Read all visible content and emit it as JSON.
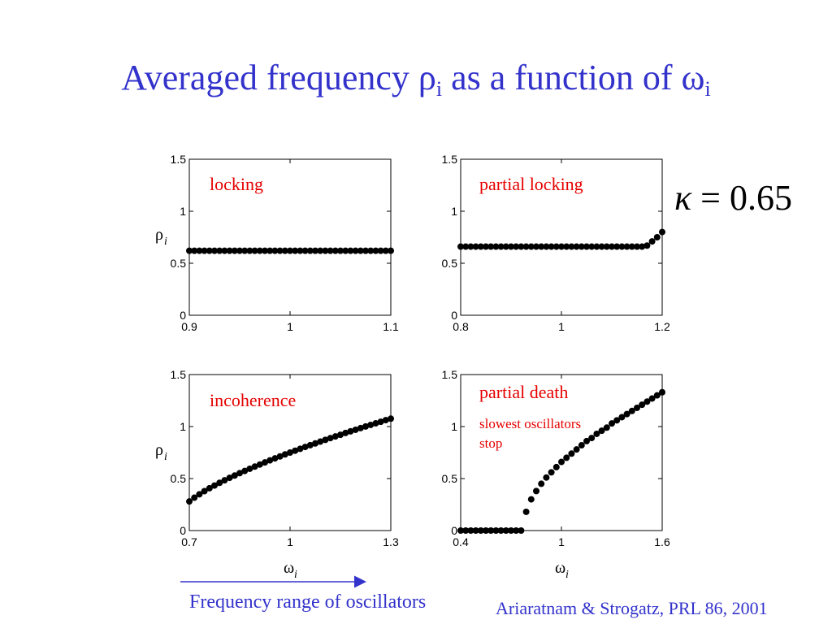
{
  "title": {
    "main": "Averaged frequency ρ",
    "sub1": "i",
    "middle": " as a function of ω",
    "sub2": "i"
  },
  "kappa": {
    "symbol": "κ",
    "equals": " = ",
    "value": "0.65"
  },
  "annotations": {
    "range_label": "Frequency range of oscillators",
    "citation": "Ariaratnam & Strogatz, PRL 86, 2001",
    "slowest_line1": "slowest oscillators",
    "slowest_line2": "stop"
  },
  "axis_symbols": {
    "rho": "ρ",
    "omega": "ω",
    "sub": "i"
  },
  "colors": {
    "title": "#3333cc",
    "label": "#e60000",
    "marker": "#000000",
    "arrow_red": "#e60000",
    "arrow_blue": "#3333cc"
  },
  "chart_data": [
    {
      "type": "scatter",
      "label": "locking",
      "xlim": [
        0.9,
        1.1
      ],
      "ylim": [
        0,
        1.5
      ],
      "xticks": [
        "0.9",
        "1",
        "1.1"
      ],
      "yticks": [
        "0",
        "0.5",
        "1",
        "1.5"
      ],
      "ylabel": "ρi",
      "xlabel": "",
      "x": [
        0.9,
        0.905,
        0.91,
        0.915,
        0.92,
        0.925,
        0.93,
        0.935,
        0.94,
        0.945,
        0.95,
        0.955,
        0.96,
        0.965,
        0.97,
        0.975,
        0.98,
        0.985,
        0.99,
        0.995,
        1.0,
        1.005,
        1.01,
        1.015,
        1.02,
        1.025,
        1.03,
        1.035,
        1.04,
        1.045,
        1.05,
        1.055,
        1.06,
        1.065,
        1.07,
        1.075,
        1.08,
        1.085,
        1.09,
        1.095,
        1.1
      ],
      "y": [
        0.62,
        0.62,
        0.62,
        0.62,
        0.62,
        0.62,
        0.62,
        0.62,
        0.62,
        0.62,
        0.62,
        0.62,
        0.62,
        0.62,
        0.62,
        0.62,
        0.62,
        0.62,
        0.62,
        0.62,
        0.62,
        0.62,
        0.62,
        0.62,
        0.62,
        0.62,
        0.62,
        0.62,
        0.62,
        0.62,
        0.62,
        0.62,
        0.62,
        0.62,
        0.62,
        0.62,
        0.62,
        0.62,
        0.62,
        0.62,
        0.62
      ]
    },
    {
      "type": "scatter",
      "label": "partial locking",
      "xlim": [
        0.8,
        1.2
      ],
      "ylim": [
        0,
        1.5
      ],
      "xticks": [
        "0.8",
        "1",
        "1.2"
      ],
      "yticks": [
        "0",
        "0.5",
        "1",
        "1.5"
      ],
      "ylabel": "",
      "xlabel": "",
      "x": [
        0.8,
        0.81,
        0.82,
        0.83,
        0.84,
        0.85,
        0.86,
        0.87,
        0.88,
        0.89,
        0.9,
        0.91,
        0.92,
        0.93,
        0.94,
        0.95,
        0.96,
        0.97,
        0.98,
        0.99,
        1.0,
        1.01,
        1.02,
        1.03,
        1.04,
        1.05,
        1.06,
        1.07,
        1.08,
        1.09,
        1.1,
        1.11,
        1.12,
        1.13,
        1.14,
        1.15,
        1.16,
        1.17,
        1.18,
        1.19,
        1.2
      ],
      "y": [
        0.66,
        0.66,
        0.66,
        0.66,
        0.66,
        0.66,
        0.66,
        0.66,
        0.66,
        0.66,
        0.66,
        0.66,
        0.66,
        0.66,
        0.66,
        0.66,
        0.66,
        0.66,
        0.66,
        0.66,
        0.66,
        0.66,
        0.66,
        0.66,
        0.66,
        0.66,
        0.66,
        0.66,
        0.66,
        0.66,
        0.66,
        0.66,
        0.66,
        0.66,
        0.66,
        0.66,
        0.66,
        0.67,
        0.71,
        0.75,
        0.8
      ]
    },
    {
      "type": "scatter",
      "label": "incoherence",
      "xlim": [
        0.7,
        1.3
      ],
      "ylim": [
        0,
        1.5
      ],
      "xticks": [
        "0.7",
        "1",
        "1.3"
      ],
      "yticks": [
        "0",
        "0.5",
        "1",
        "1.5"
      ],
      "ylabel": "ρi",
      "xlabel": "ωi",
      "x": [
        0.7,
        0.715,
        0.73,
        0.745,
        0.76,
        0.775,
        0.79,
        0.805,
        0.82,
        0.835,
        0.85,
        0.865,
        0.88,
        0.895,
        0.91,
        0.925,
        0.94,
        0.955,
        0.97,
        0.985,
        1.0,
        1.015,
        1.03,
        1.045,
        1.06,
        1.075,
        1.09,
        1.105,
        1.12,
        1.135,
        1.15,
        1.165,
        1.18,
        1.195,
        1.21,
        1.225,
        1.24,
        1.255,
        1.27,
        1.285,
        1.3
      ],
      "y": [
        0.28,
        0.316,
        0.349,
        0.379,
        0.407,
        0.433,
        0.459,
        0.483,
        0.507,
        0.529,
        0.552,
        0.573,
        0.594,
        0.615,
        0.635,
        0.655,
        0.675,
        0.694,
        0.713,
        0.732,
        0.75,
        0.768,
        0.786,
        0.804,
        0.821,
        0.838,
        0.855,
        0.872,
        0.889,
        0.905,
        0.921,
        0.938,
        0.954,
        0.969,
        0.985,
        1.001,
        1.016,
        1.031,
        1.046,
        1.062,
        1.076
      ]
    },
    {
      "type": "scatter",
      "label": "partial death",
      "xlim": [
        0.4,
        1.6
      ],
      "ylim": [
        0,
        1.5
      ],
      "xticks": [
        "0.4",
        "1",
        "1.6"
      ],
      "yticks": [
        "0",
        "0.5",
        "1",
        "1.5"
      ],
      "ylabel": "",
      "xlabel": "ωi",
      "x": [
        0.4,
        0.43,
        0.46,
        0.49,
        0.52,
        0.55,
        0.58,
        0.61,
        0.64,
        0.67,
        0.7,
        0.73,
        0.76,
        0.79,
        0.82,
        0.85,
        0.88,
        0.91,
        0.94,
        0.97,
        1.0,
        1.03,
        1.06,
        1.09,
        1.12,
        1.15,
        1.18,
        1.21,
        1.24,
        1.27,
        1.3,
        1.33,
        1.36,
        1.39,
        1.42,
        1.45,
        1.48,
        1.51,
        1.54,
        1.57,
        1.6
      ],
      "y": [
        0,
        0,
        0,
        0,
        0,
        0,
        0,
        0,
        0,
        0,
        0,
        0,
        0,
        0.18,
        0.3,
        0.38,
        0.45,
        0.51,
        0.56,
        0.61,
        0.66,
        0.7,
        0.74,
        0.78,
        0.82,
        0.86,
        0.89,
        0.93,
        0.96,
        0.99,
        1.03,
        1.06,
        1.09,
        1.12,
        1.15,
        1.18,
        1.21,
        1.24,
        1.27,
        1.3,
        1.33
      ]
    }
  ]
}
